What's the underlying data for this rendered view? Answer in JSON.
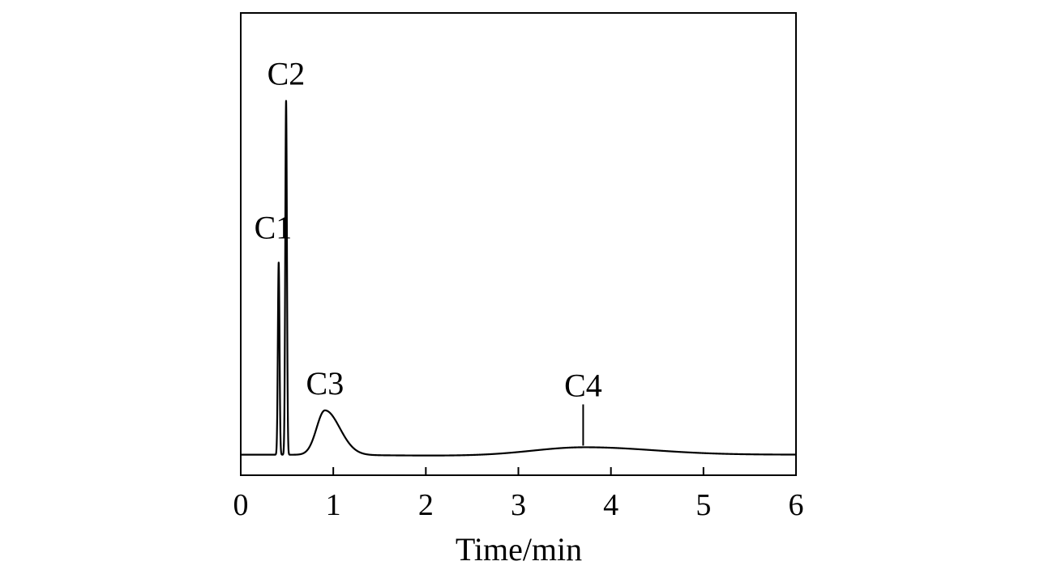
{
  "chart_data": {
    "type": "line",
    "title": "",
    "xlabel": "Time/min",
    "ylabel": "",
    "xlim": [
      0,
      6
    ],
    "ylim": [
      0,
      100
    ],
    "xticks": [
      "0",
      "1",
      "2",
      "3",
      "4",
      "5",
      "6"
    ],
    "yticks": [],
    "grid": false,
    "legend": "none",
    "colors": {
      "line": "#000000",
      "frame": "#000000"
    },
    "baseline": 0,
    "series": [
      {
        "peaks": [
          {
            "label": "C1",
            "time": 0.41,
            "height": 47.5,
            "width_left": 0.009,
            "width_right": 0.009,
            "label_time": 0.35,
            "label_height": 53.5,
            "tick": false
          },
          {
            "label": "C2",
            "time": 0.49,
            "height": 87.5,
            "width_left": 0.009,
            "width_right": 0.009,
            "label_time": 0.49,
            "label_height": 91.5,
            "tick": false
          },
          {
            "label": "C3",
            "time": 0.91,
            "height": 11.0,
            "width_left": 0.09,
            "width_right": 0.16,
            "label_time": 0.91,
            "label_height": 15.0,
            "tick": false
          },
          {
            "label": "C4",
            "time": 3.7,
            "height": 2.0,
            "width_left": 0.55,
            "width_right": 0.75,
            "label_time": 3.7,
            "label_height": 14.5,
            "tick": true
          }
        ]
      }
    ]
  }
}
